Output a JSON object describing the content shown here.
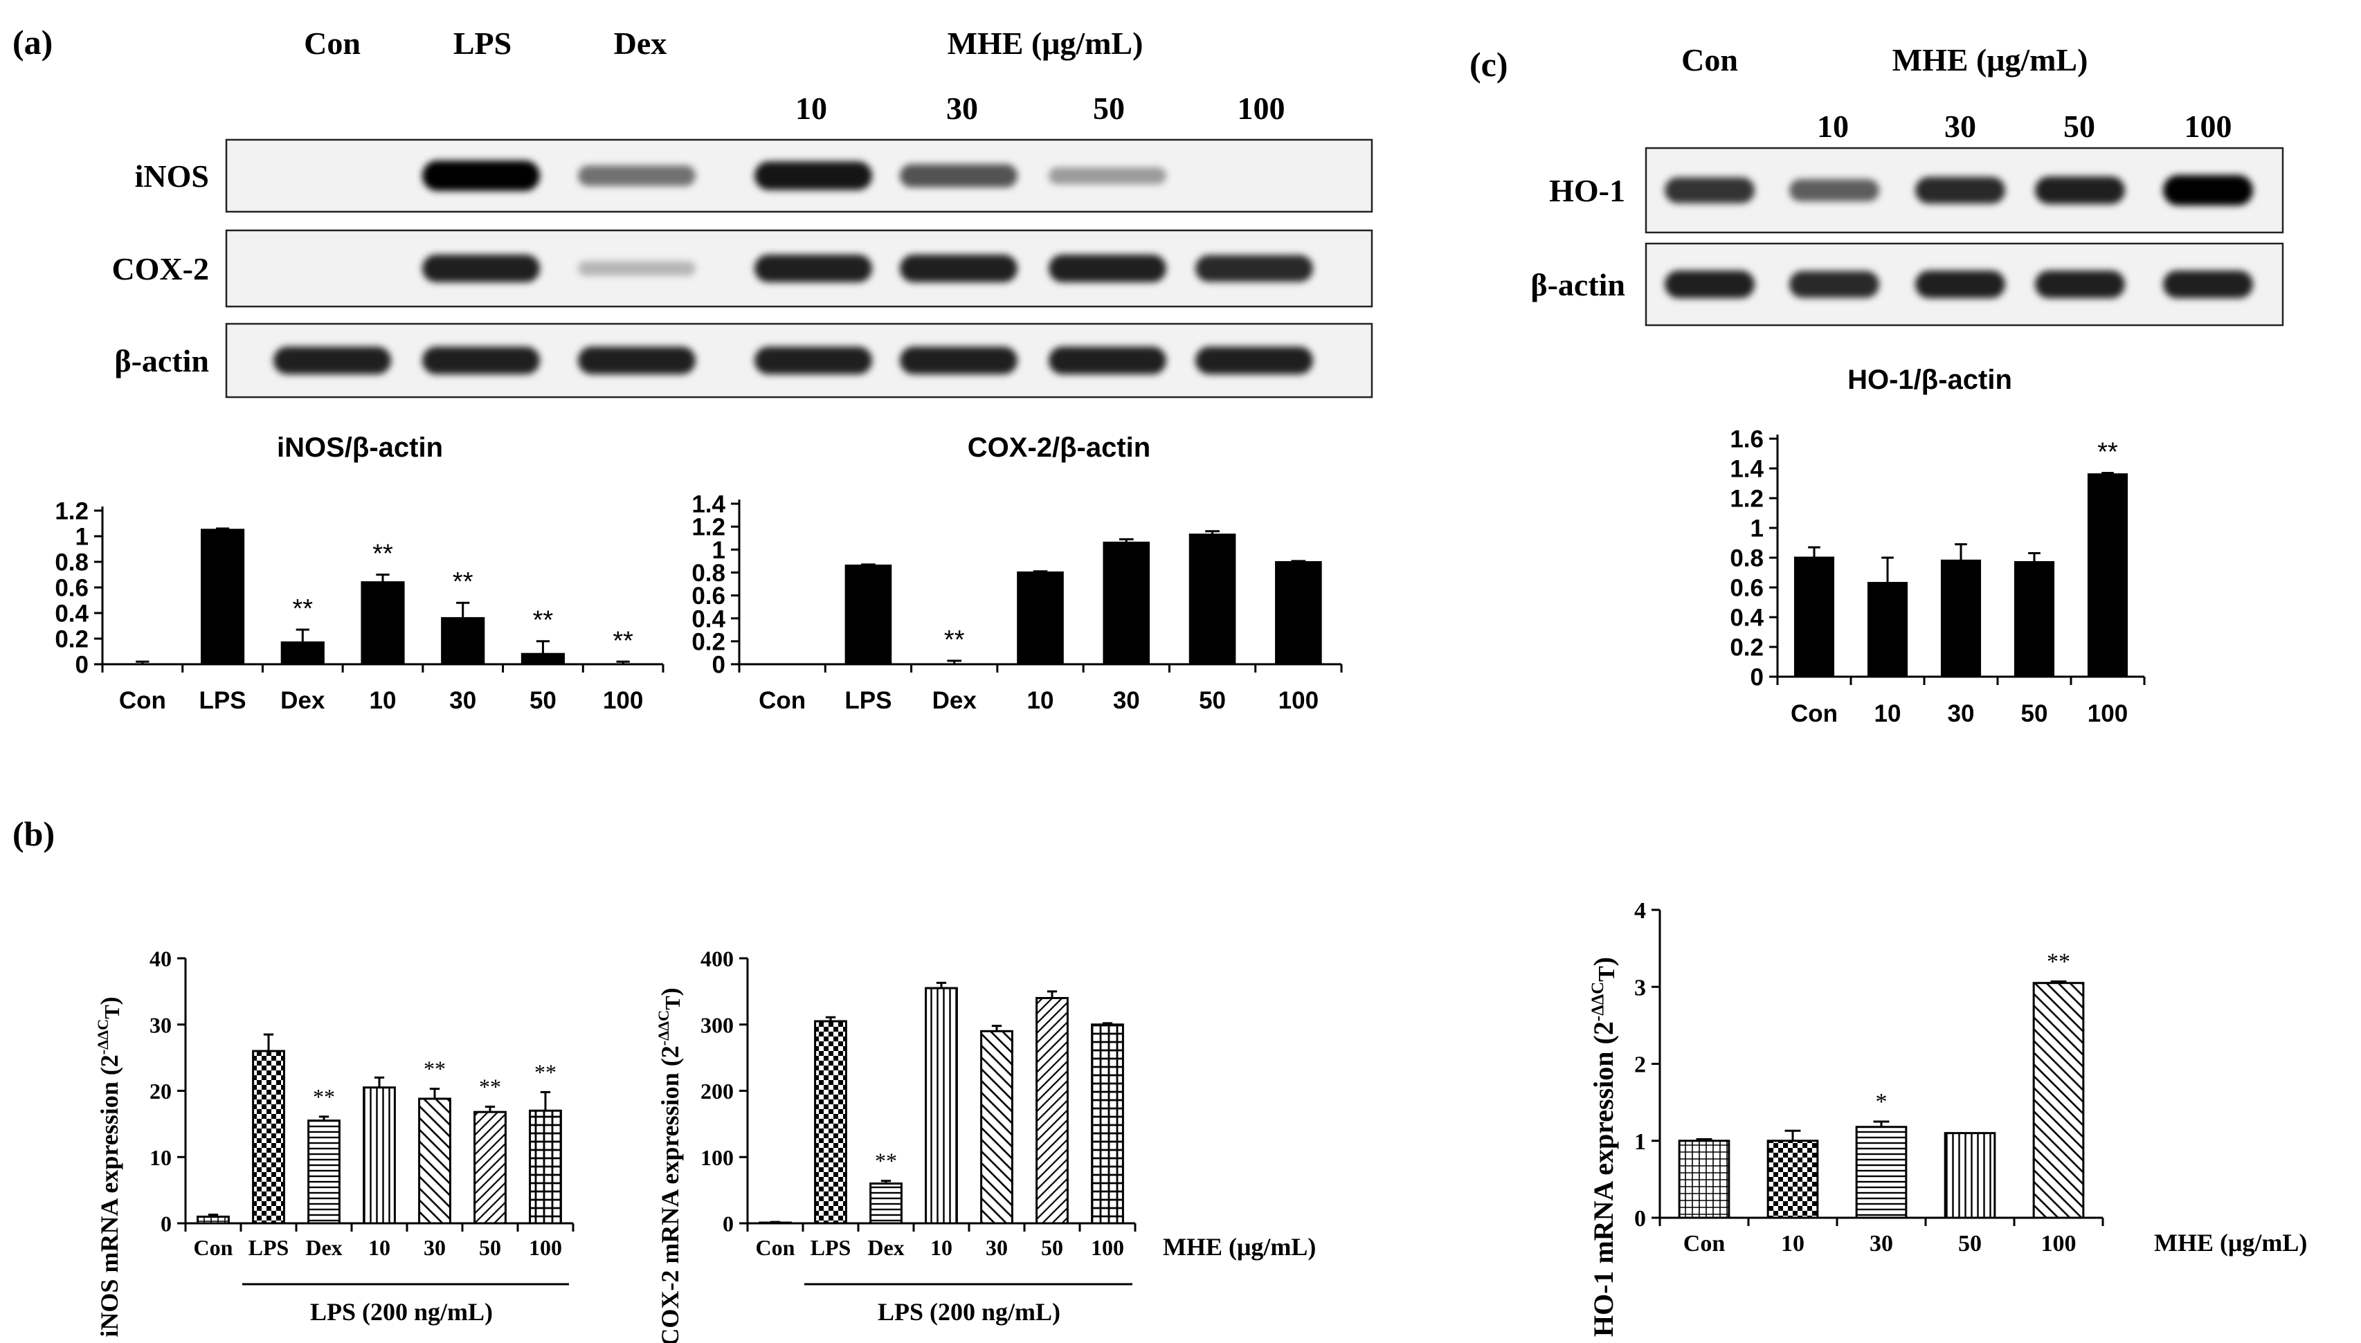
{
  "panel_a": {
    "tag": "(a)",
    "header": [
      "Con",
      "LPS",
      "Dex"
    ],
    "mhe_label": "MHE (μg/mL)",
    "doses": [
      "10",
      "30",
      "50",
      "100"
    ],
    "blot_rows": [
      "iNOS",
      "COX-2",
      "β-actin"
    ],
    "blot_intensity": {
      "iNOS": [
        0,
        1.0,
        0.45,
        0.9,
        0.6,
        0.25,
        0
      ],
      "COX-2": [
        0,
        0.85,
        0.12,
        0.85,
        0.85,
        0.85,
        0.8
      ],
      "β-actin": [
        0.85,
        0.85,
        0.85,
        0.85,
        0.85,
        0.85,
        0.85
      ]
    }
  },
  "panel_c": {
    "tag": "(c)",
    "header": "Con",
    "mhe_label": "MHE (μg/mL)",
    "doses": [
      "10",
      "30",
      "50",
      "100"
    ],
    "blot_rows": [
      "HO-1",
      "β-actin"
    ],
    "blot_intensity": {
      "HO-1": [
        0.75,
        0.55,
        0.8,
        0.85,
        1.0
      ],
      "β-actin": [
        0.85,
        0.8,
        0.85,
        0.85,
        0.85
      ]
    }
  },
  "panel_b": {
    "tag": "(b)"
  },
  "chart_data": [
    {
      "id": "inos_wb",
      "type": "bar",
      "title": "iNOS/β-actin",
      "categories": [
        "Con",
        "LPS",
        "Dex",
        "10",
        "30",
        "50",
        "100"
      ],
      "values": [
        0.0,
        1.05,
        0.17,
        0.64,
        0.36,
        0.08,
        0.0
      ],
      "errors": [
        0.02,
        0.01,
        0.1,
        0.06,
        0.12,
        0.1,
        0.02
      ],
      "sig": [
        "",
        "",
        "**",
        "**",
        "**",
        "**",
        "**"
      ],
      "ylim": [
        0,
        1.2
      ],
      "yticks": [
        "0",
        "0.2",
        "0.4",
        "0.6",
        "0.8",
        "1",
        "1.2"
      ],
      "fill": "solid"
    },
    {
      "id": "cox2_wb",
      "type": "bar",
      "title": "COX-2/β-actin",
      "categories": [
        "Con",
        "LPS",
        "Dex",
        "10",
        "30",
        "50",
        "100"
      ],
      "values": [
        0.0,
        0.86,
        0.0,
        0.8,
        1.06,
        1.13,
        0.89
      ],
      "errors": [
        0,
        0.01,
        0.03,
        0.01,
        0.03,
        0.03,
        0.01
      ],
      "sig": [
        "",
        "",
        "**",
        "",
        "",
        "",
        ""
      ],
      "ylim": [
        0,
        1.4
      ],
      "yticks": [
        "0",
        "0.2",
        "0.4",
        "0.6",
        "0.8",
        "1",
        "1.2",
        "1.4"
      ],
      "fill": "solid"
    },
    {
      "id": "ho1_wb",
      "type": "bar",
      "title": "HO-1/β-actin",
      "categories": [
        "Con",
        "10",
        "30",
        "50",
        "100"
      ],
      "values": [
        0.8,
        0.63,
        0.78,
        0.77,
        1.36
      ],
      "errors": [
        0.07,
        0.17,
        0.11,
        0.06,
        0.01
      ],
      "sig": [
        "",
        "",
        "",
        "",
        "**"
      ],
      "ylim": [
        0,
        1.6
      ],
      "yticks": [
        "0",
        "0.2",
        "0.4",
        "0.6",
        "0.8",
        "1",
        "1.2",
        "1.4",
        "1.6"
      ],
      "fill": "solid"
    },
    {
      "id": "inos_mrna",
      "type": "bar",
      "ylabel": "iNOS mRNA expression (2",
      "ylabel_sup": "-ΔΔC",
      "ylabel_sub": "T",
      "ylabel_end": ")",
      "categories": [
        "Con",
        "LPS",
        "Dex",
        "10",
        "30",
        "50",
        "100"
      ],
      "values": [
        1,
        26,
        15.5,
        20.5,
        18.8,
        16.8,
        17
      ],
      "errors": [
        0.3,
        2.5,
        0.6,
        1.5,
        1.5,
        0.8,
        2.8
      ],
      "sig": [
        "",
        "",
        "**",
        "",
        "**",
        "**",
        "**"
      ],
      "ylim": [
        0,
        40
      ],
      "yticks": [
        "0",
        "10",
        "20",
        "30",
        "40"
      ],
      "patterns": [
        "hgrid",
        "check",
        "hstripe",
        "vstripe",
        "diag",
        "diag2",
        "grid"
      ],
      "group_label": "LPS (200 ng/mL)"
    },
    {
      "id": "cox2_mrna",
      "type": "bar",
      "ylabel": "COX-2 mRNA expression (2",
      "ylabel_sup": "-ΔΔC",
      "ylabel_sub": "T",
      "ylabel_end": ")",
      "categories": [
        "Con",
        "LPS",
        "Dex",
        "10",
        "30",
        "50",
        "100"
      ],
      "values": [
        1,
        305,
        60,
        355,
        290,
        340,
        300
      ],
      "errors": [
        1,
        6,
        4,
        8,
        8,
        10,
        2
      ],
      "sig": [
        "",
        "",
        "**",
        "",
        "",
        "",
        ""
      ],
      "ylim": [
        0,
        400
      ],
      "yticks": [
        "0",
        "100",
        "200",
        "300",
        "400"
      ],
      "patterns": [
        "hgrid",
        "check",
        "hstripe",
        "vstripe",
        "diag",
        "diag2",
        "grid"
      ],
      "group_label": "LPS (200 ng/mL)",
      "x_unit": "MHE (μg/mL)"
    },
    {
      "id": "ho1_mrna",
      "type": "bar",
      "ylabel": "HO-1 mRNA expression (2",
      "ylabel_sup": "-ΔΔC",
      "ylabel_sub": "T",
      "ylabel_end": ")",
      "categories": [
        "Con",
        "10",
        "30",
        "50",
        "100"
      ],
      "values": [
        1.0,
        1.0,
        1.18,
        1.1,
        3.05
      ],
      "errors": [
        0.02,
        0.13,
        0.07,
        0.0,
        0.02
      ],
      "sig": [
        "",
        "",
        "*",
        "",
        "**"
      ],
      "ylim": [
        0,
        4
      ],
      "yticks": [
        "0",
        "1",
        "2",
        "3",
        "4"
      ],
      "patterns": [
        "hgrid",
        "check",
        "hstripe",
        "vstripe",
        "diag"
      ],
      "x_unit": "MHE (μg/mL)"
    }
  ]
}
